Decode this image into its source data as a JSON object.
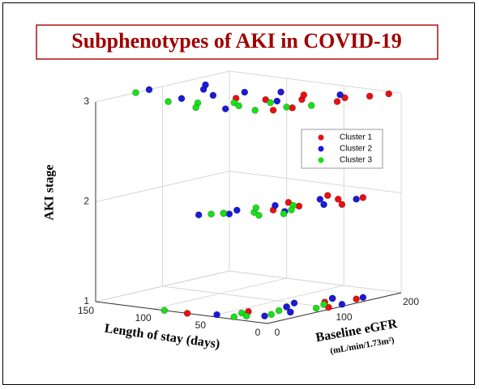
{
  "chart_data": {
    "type": "scatter3d",
    "title": "Subphenotypes of AKI in COVID-19",
    "x_label": "Length of stay (days)",
    "y_label": "Baseline eGFR",
    "y_label_units": "(mL/min/1.73m²)",
    "z_label": "AKI stage",
    "xlim": [
      0,
      150
    ],
    "xticks": [
      0,
      50,
      100,
      150
    ],
    "ylim": [
      0,
      200
    ],
    "yticks": [
      0,
      100,
      200
    ],
    "zlim": [
      1,
      3
    ],
    "zticks": [
      1,
      2,
      3
    ],
    "grid": true,
    "legend": "upper right",
    "series": [
      {
        "name": "Cluster 1",
        "color": "#e81010",
        "x": [
          5,
          20,
          40,
          60,
          10,
          30,
          80,
          15,
          50,
          25,
          20,
          40,
          10,
          30,
          5,
          50,
          25,
          35,
          70,
          20,
          10,
          30,
          5,
          15,
          25,
          40
        ],
        "y": [
          190,
          150,
          120,
          100,
          170,
          60,
          90,
          130,
          140,
          80,
          140,
          100,
          160,
          60,
          120,
          20,
          90,
          150,
          0,
          120,
          150,
          80,
          100,
          60,
          140,
          40
        ],
        "z": [
          3,
          3,
          3,
          3,
          3,
          3,
          3,
          3,
          3,
          3,
          2,
          2,
          2,
          2,
          2,
          2,
          2,
          2,
          1,
          1,
          1,
          1,
          1,
          1,
          1,
          1
        ]
      },
      {
        "name": "Cluster 2",
        "color": "#1a1ad8",
        "x": [
          150,
          130,
          120,
          100,
          90,
          70,
          50,
          110,
          30,
          60,
          60,
          40,
          20,
          30,
          10,
          50,
          15,
          45,
          50,
          30,
          10,
          20,
          5,
          35,
          15,
          25
        ],
        "y": [
          80,
          130,
          110,
          90,
          120,
          140,
          100,
          60,
          160,
          40,
          0,
          80,
          60,
          130,
          150,
          40,
          110,
          20,
          10,
          80,
          160,
          30,
          120,
          100,
          60,
          140
        ],
        "z": [
          3,
          3,
          3,
          3,
          3,
          3,
          3,
          3,
          3,
          3,
          2,
          2,
          2,
          2,
          2,
          2,
          2,
          2,
          1,
          1,
          1,
          1,
          1,
          1,
          1,
          1
        ]
      },
      {
        "name": "Cluster 3",
        "color": "#18e018",
        "x": [
          150,
          110,
          90,
          70,
          60,
          40,
          30,
          50,
          80,
          20,
          50,
          35,
          25,
          45,
          15,
          55,
          30,
          20,
          90,
          40,
          25,
          10,
          35,
          20,
          15,
          30
        ],
        "y": [
          60,
          40,
          50,
          70,
          60,
          50,
          80,
          90,
          30,
          100,
          20,
          40,
          30,
          60,
          50,
          10,
          90,
          70,
          0,
          30,
          60,
          90,
          10,
          40,
          110,
          20
        ],
        "z": [
          3,
          3,
          3,
          3,
          3,
          3,
          3,
          3,
          3,
          3,
          2,
          2,
          2,
          2,
          2,
          2,
          2,
          2,
          1,
          1,
          1,
          1,
          1,
          1,
          1,
          1
        ]
      }
    ]
  }
}
